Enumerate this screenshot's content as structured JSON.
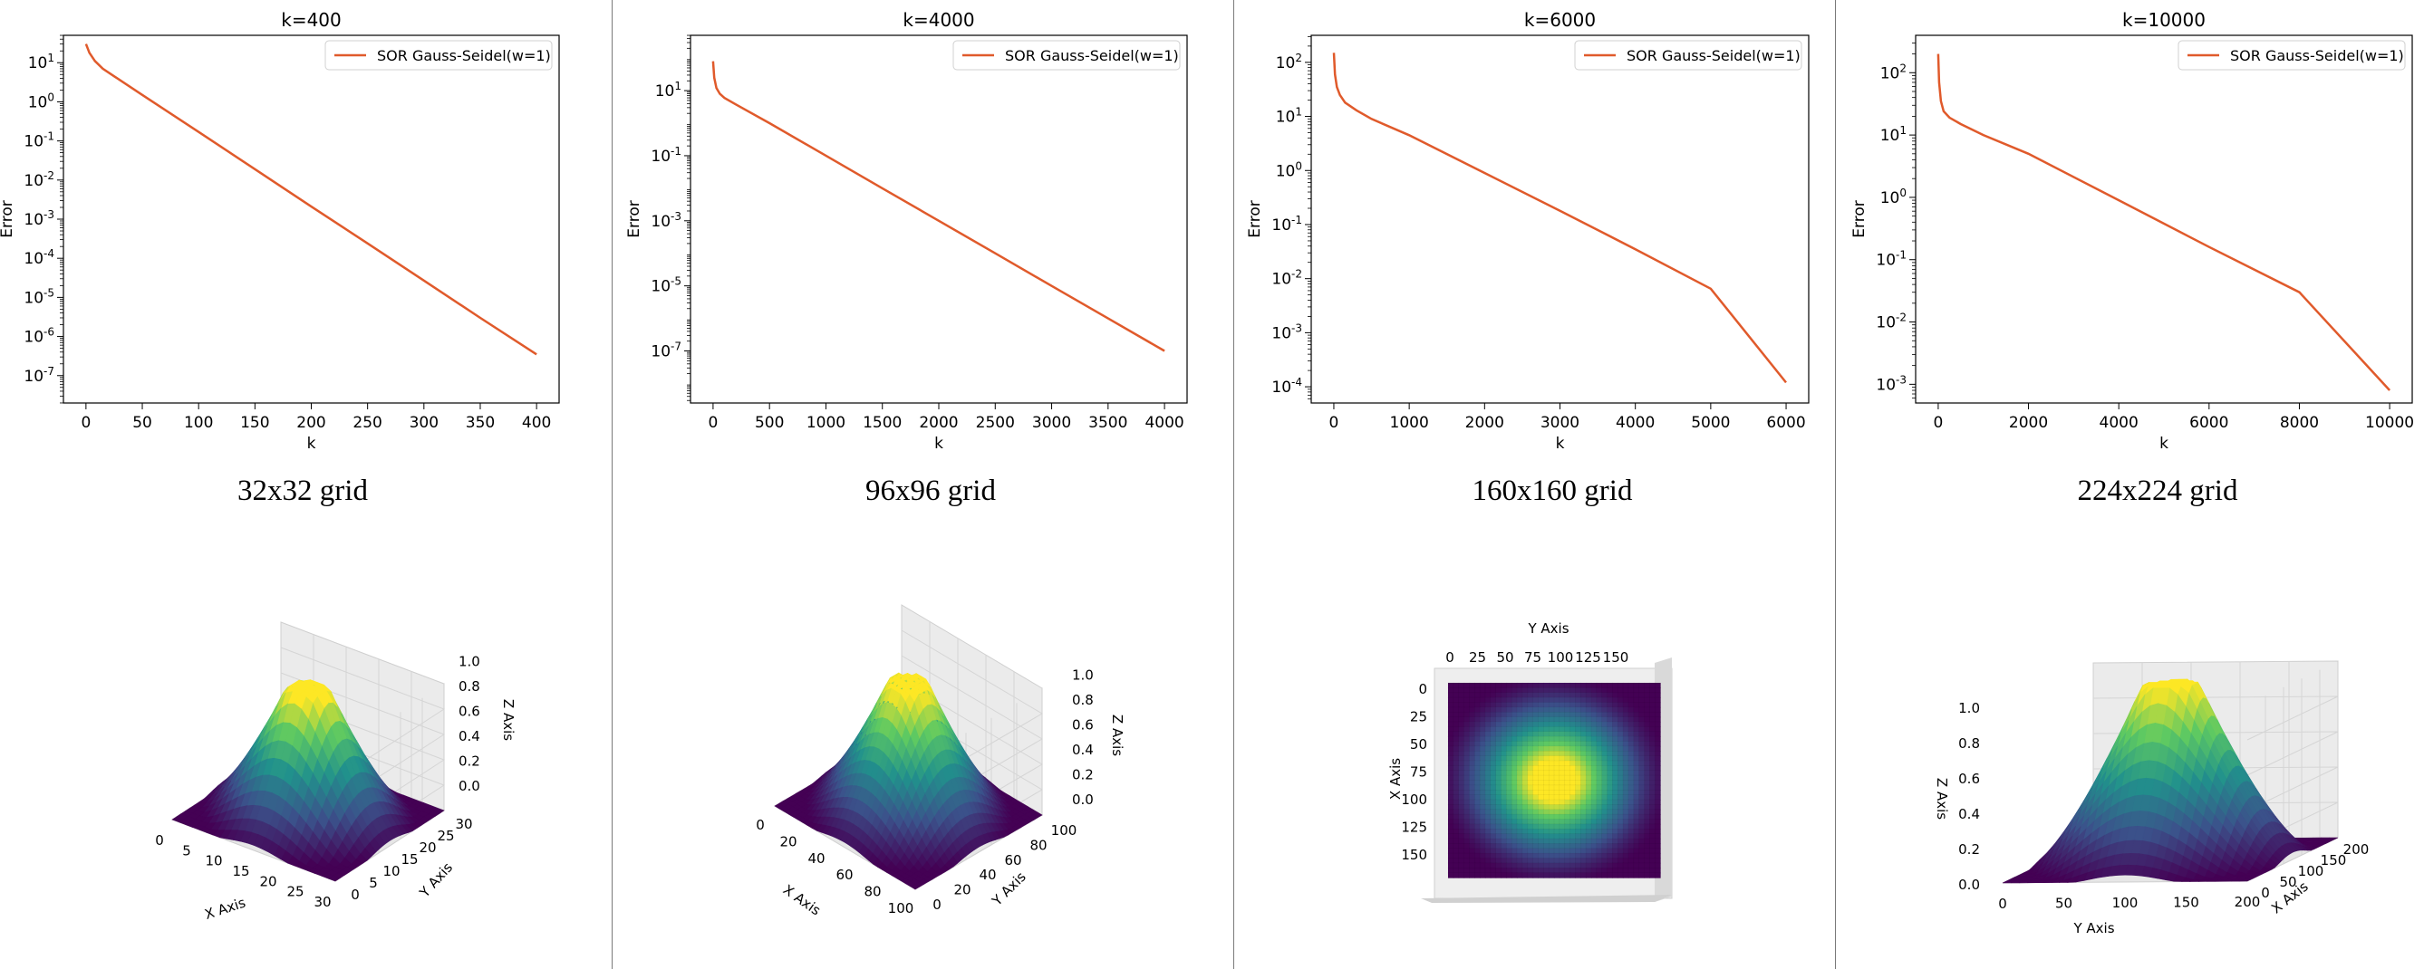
{
  "chart_data": [
    {
      "type": "line",
      "title": "k=400",
      "xlabel": "k",
      "ylabel": "Error",
      "yscale": "log",
      "xlim": [
        -20,
        420
      ],
      "ylim_exp": [
        -7.7,
        1.7
      ],
      "xticks": [
        0,
        50,
        100,
        150,
        200,
        250,
        300,
        350,
        400
      ],
      "yticks": [
        {
          "e": 1,
          "label": "10^1"
        },
        {
          "e": 0,
          "label": "10^0"
        },
        {
          "e": -1,
          "label": "10^-1"
        },
        {
          "e": -2,
          "label": "10^-2"
        },
        {
          "e": -3,
          "label": "10^-3"
        },
        {
          "e": -4,
          "label": "10^-4"
        },
        {
          "e": -5,
          "label": "10^-5"
        },
        {
          "e": -6,
          "label": "10^-6"
        },
        {
          "e": -7,
          "label": "10^-7"
        }
      ],
      "legend": "top-right",
      "series": [
        {
          "name": "SOR Gauss-Seidel(w=1)",
          "color": "#e05a2b",
          "x": [
            0,
            3,
            8,
            15,
            25,
            50,
            100,
            150,
            200,
            250,
            300,
            350,
            400
          ],
          "y": [
            30,
            18,
            11,
            7,
            4.5,
            1.5,
            0.17,
            0.019,
            0.0021,
            0.00024,
            2.7e-05,
            3e-06,
            3.5e-07
          ]
        }
      ]
    },
    {
      "type": "line",
      "title": "k=4000",
      "xlabel": "k",
      "ylabel": "Error",
      "yscale": "log",
      "xlim": [
        -200,
        4200
      ],
      "ylim_exp": [
        -8.6,
        2.7
      ],
      "xticks": [
        0,
        500,
        1000,
        1500,
        2000,
        2500,
        3000,
        3500,
        4000
      ],
      "yticks": [
        {
          "e": 1,
          "label": "10^1"
        },
        {
          "e": -1,
          "label": "10^-1"
        },
        {
          "e": -3,
          "label": "10^-3"
        },
        {
          "e": -5,
          "label": "10^-5"
        },
        {
          "e": -7,
          "label": "10^-7"
        }
      ],
      "legend": "top-right",
      "series": [
        {
          "name": "SOR Gauss-Seidel(w=1)",
          "color": "#e05a2b",
          "x": [
            0,
            10,
            30,
            60,
            100,
            200,
            500,
            1000,
            1500,
            2000,
            2500,
            3000,
            3500,
            4000
          ],
          "y": [
            80,
            25,
            12,
            8,
            6,
            3.8,
            1.0,
            0.1,
            0.01,
            0.001,
            0.0001,
            1e-05,
            1e-06,
            1e-07
          ]
        }
      ]
    },
    {
      "type": "line",
      "title": "k=6000",
      "xlabel": "k",
      "ylabel": "Error",
      "yscale": "log",
      "xlim": [
        -300,
        6300
      ],
      "ylim_exp": [
        -4.3,
        2.5
      ],
      "xticks": [
        0,
        1000,
        2000,
        3000,
        4000,
        5000,
        6000
      ],
      "yticks": [
        {
          "e": 2,
          "label": "10^2"
        },
        {
          "e": 1,
          "label": "10^1"
        },
        {
          "e": 0,
          "label": "10^0"
        },
        {
          "e": -1,
          "label": "10^-1"
        },
        {
          "e": -2,
          "label": "10^-2"
        },
        {
          "e": -3,
          "label": "10^-3"
        },
        {
          "e": -4,
          "label": "10^-4"
        }
      ],
      "legend": "top-right",
      "series": [
        {
          "name": "SOR Gauss-Seidel(w=1)",
          "color": "#e05a2b",
          "x": [
            0,
            15,
            40,
            80,
            150,
            300,
            500,
            1000,
            2000,
            3000,
            4000,
            5000,
            6000
          ],
          "y": [
            150,
            60,
            35,
            25,
            18,
            13,
            9,
            4.5,
            0.9,
            0.18,
            0.035,
            0.0065,
            0.00012
          ]
        }
      ]
    },
    {
      "type": "line",
      "title": "k=10000",
      "xlabel": "k",
      "ylabel": "Error",
      "yscale": "log",
      "xlim": [
        -500,
        10500
      ],
      "ylim_exp": [
        -3.3,
        2.6
      ],
      "xticks": [
        0,
        2000,
        4000,
        6000,
        8000,
        10000
      ],
      "yticks": [
        {
          "e": 2,
          "label": "10^2"
        },
        {
          "e": 1,
          "label": "10^1"
        },
        {
          "e": 0,
          "label": "10^0"
        },
        {
          "e": -1,
          "label": "10^-1"
        },
        {
          "e": -2,
          "label": "10^-2"
        },
        {
          "e": -3,
          "label": "10^-3"
        }
      ],
      "legend": "top-right",
      "series": [
        {
          "name": "SOR Gauss-Seidel(w=1)",
          "color": "#e05a2b",
          "x": [
            0,
            20,
            60,
            120,
            250,
            500,
            1000,
            2000,
            4000,
            6000,
            8000,
            10000
          ],
          "y": [
            200,
            70,
            35,
            24,
            19,
            15,
            10,
            5,
            0.9,
            0.16,
            0.03,
            0.0008
          ]
        }
      ]
    }
  ],
  "captions": [
    "32x32 grid",
    "96x96 grid",
    "160x160 grid",
    "224x224 grid"
  ],
  "surfaces": {
    "z_axis_label": "Z Axis",
    "x_axis_label": "X Axis",
    "y_axis_label": "Y Axis",
    "z_ticks": [
      "0.0",
      "0.2",
      "0.4",
      "0.6",
      "0.8",
      "1.0"
    ],
    "panel1": {
      "x_ticks": [
        "0",
        "5",
        "10",
        "15",
        "20",
        "25",
        "30"
      ],
      "y_ticks": [
        "0",
        "5",
        "10",
        "15",
        "20",
        "25",
        "30"
      ]
    },
    "panel2": {
      "x_ticks": [
        "0",
        "20",
        "40",
        "60",
        "80",
        "100"
      ],
      "y_ticks": [
        "0",
        "20",
        "40",
        "60",
        "80",
        "100"
      ]
    },
    "panel3": {
      "x_ticks": [
        "0",
        "25",
        "50",
        "75",
        "100",
        "125",
        "150"
      ],
      "y_ticks": [
        "0",
        "25",
        "50",
        "75",
        "100",
        "125",
        "150"
      ]
    },
    "panel4": {
      "x_ticks": [
        "0",
        "50",
        "100",
        "150",
        "200"
      ],
      "y_ticks": [
        "0",
        "50",
        "100",
        "150",
        "200"
      ],
      "z_ticks": [
        "0.0",
        "0.2",
        "0.4",
        "0.6",
        "0.8",
        "1.0"
      ]
    }
  }
}
